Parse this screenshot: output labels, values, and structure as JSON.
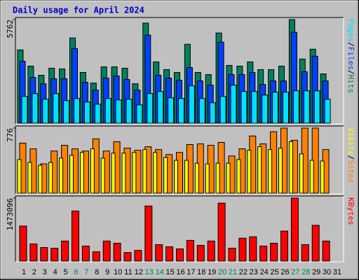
{
  "title": "Daily usage for April 2024",
  "legend_separator": "/",
  "categories": [
    "1",
    "2",
    "3",
    "4",
    "5",
    "6",
    "7",
    "8",
    "9",
    "10",
    "11",
    "12",
    "13",
    "14",
    "15",
    "16",
    "17",
    "18",
    "19",
    "20",
    "21",
    "22",
    "23",
    "24",
    "25",
    "26",
    "27",
    "28",
    "29",
    "30",
    "31"
  ],
  "category_colors": [
    "#000000",
    "#000000",
    "#000000",
    "#000000",
    "#000000",
    "#00805c",
    "#00805c",
    "#000000",
    "#000000",
    "#000000",
    "#000000",
    "#000000",
    "#00805c",
    "#00805c",
    "#000000",
    "#000000",
    "#000000",
    "#000000",
    "#000000",
    "#00805c",
    "#00805c",
    "#000000",
    "#000000",
    "#000000",
    "#000000",
    "#000000",
    "#00805c",
    "#00805c",
    "#000000",
    "#000000",
    "#000000"
  ],
  "chart_data": [
    {
      "type": "bar",
      "ylim": [
        0,
        5762
      ],
      "yticks": [
        5762
      ],
      "series": [
        {
          "name": "Hits",
          "color": "#00805c",
          "values": [
            4077,
            3175,
            2666,
            3058,
            3018,
            4743,
            2822,
            2234,
            3136,
            3136,
            3058,
            2195,
            5566,
            3410,
            2979,
            2822,
            4390,
            2822,
            2705,
            5018,
            3214,
            3175,
            3410,
            2979,
            2979,
            3175,
            5762,
            3567,
            4116,
            2744,
            null
          ]
        },
        {
          "name": "Files",
          "color": "#0040ff",
          "values": [
            3450,
            2548,
            2195,
            2470,
            2470,
            4155,
            2274,
            1842,
            2509,
            2626,
            2431,
            1842,
            4900,
            2666,
            2509,
            2392,
            3097,
            2352,
            2117,
            4508,
            2705,
            2705,
            2822,
            2156,
            2352,
            2352,
            5057,
            2862,
            3724,
            2352,
            null
          ]
        },
        {
          "name": "Pages",
          "color": "#00e0ff",
          "values": [
            1490,
            1646,
            1333,
            1646,
            1254,
            1372,
            1176,
            1058,
            1372,
            1294,
            1333,
            1019,
            1646,
            1764,
            1411,
            1372,
            2078,
            1372,
            1137,
            1490,
            2117,
            1764,
            1764,
            1568,
            1725,
            1725,
            1803,
            1803,
            1803,
            1333,
            null
          ]
        }
      ]
    },
    {
      "type": "bar",
      "ylim": [
        0,
        776
      ],
      "yticks": [
        776
      ],
      "series": [
        {
          "name": "Sites",
          "color": "#ff8000",
          "values": [
            597,
            529,
            350,
            503,
            571,
            529,
            503,
            648,
            503,
            614,
            537,
            512,
            554,
            520,
            461,
            486,
            580,
            588,
            571,
            605,
            444,
            529,
            682,
            588,
            733,
            776,
            631,
            776,
            776,
            520,
            null
          ]
        },
        {
          "name": "Visits",
          "color": "#ffff00",
          "values": [
            401,
            367,
            333,
            367,
            418,
            452,
            486,
            529,
            418,
            478,
            478,
            486,
            520,
            486,
            427,
            392,
            392,
            358,
            350,
            358,
            358,
            401,
            512,
            554,
            520,
            537,
            614,
            469,
            392,
            384,
            null
          ]
        }
      ]
    },
    {
      "type": "bar",
      "ylim": [
        0,
        1473096
      ],
      "yticks": [
        1473096
      ],
      "series": [
        {
          "name": "KBytes",
          "color": "#ff0000",
          "values": [
            820000,
            402000,
            318000,
            301000,
            469000,
            1172000,
            352000,
            218000,
            469000,
            418000,
            201000,
            251000,
            1289000,
            385000,
            335000,
            285000,
            485000,
            368000,
            469000,
            1356000,
            301000,
            536000,
            569000,
            352000,
            418000,
            703000,
            1473096,
            385000,
            837000,
            469000,
            null
          ]
        }
      ]
    }
  ]
}
